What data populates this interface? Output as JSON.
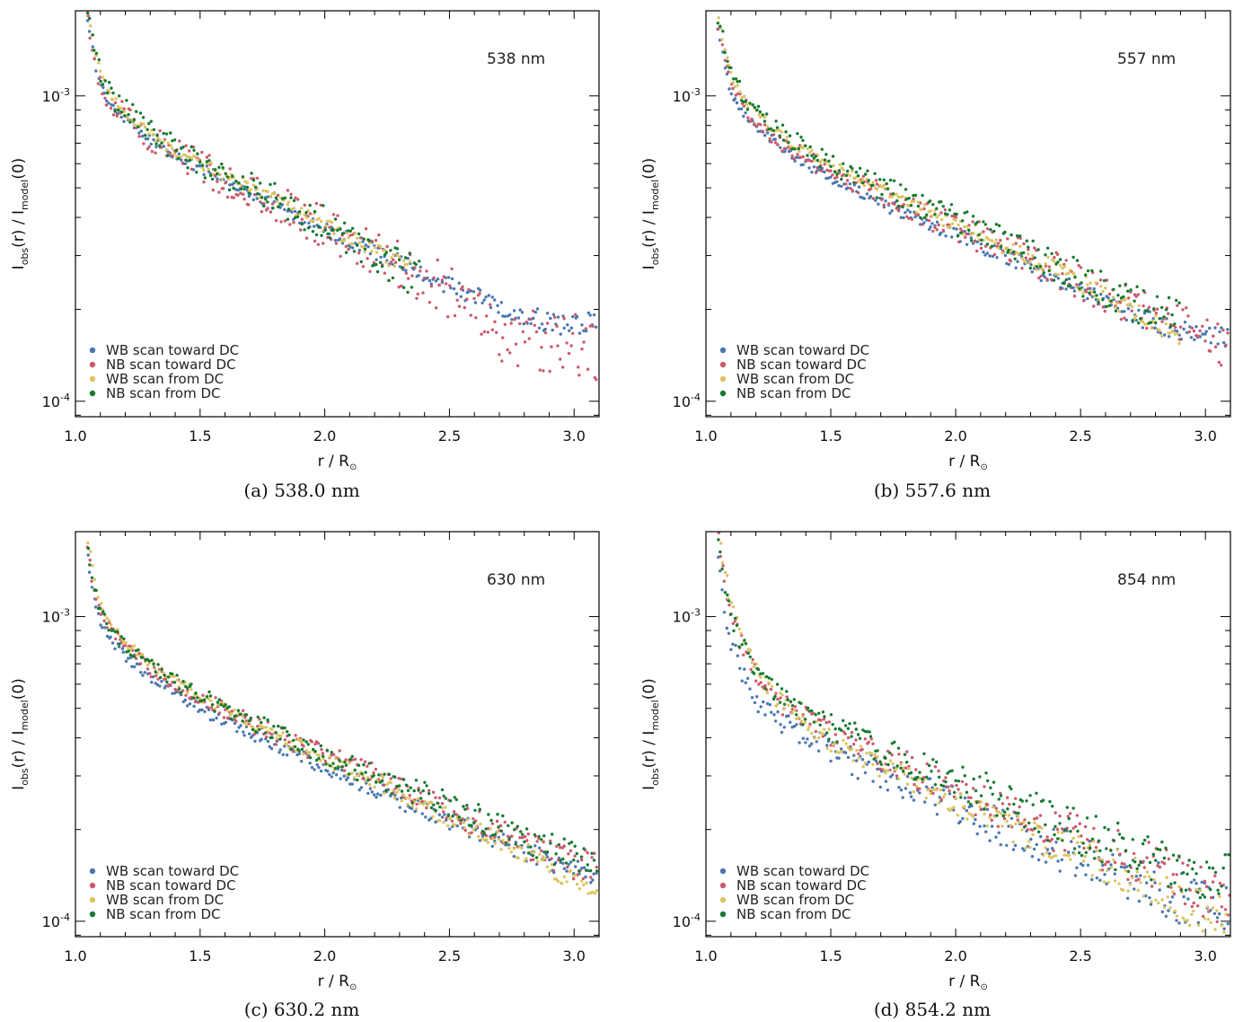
{
  "figure": {
    "legend_labels": [
      "WB scan toward DC",
      "NB scan toward DC",
      "WB scan from DC",
      "NB scan from DC"
    ],
    "series_colors": [
      "#4a78b0",
      "#cc5a6c",
      "#dcc462",
      "#177a30"
    ],
    "axis": {
      "xlabel_main": "r / R",
      "xlabel_sub": "⊙",
      "ylabel": {
        "p1": "I",
        "p1s": "obs",
        "p2": "(r) / I",
        "p2s": "model",
        "p3": "(0)"
      },
      "x_ticks": [
        "1.0",
        "1.5",
        "2.0",
        "2.5",
        "3.0"
      ],
      "y_ticks": [
        {
          "base": "10",
          "exp": "-3"
        },
        {
          "base": "10",
          "exp": "-4"
        }
      ]
    }
  },
  "chart_data": [
    {
      "type": "scatter",
      "annotation": "538 nm",
      "caption": "(a) 538.0 nm",
      "xlim": [
        1.0,
        3.1
      ],
      "ylim": [
        8.9e-05,
        0.0019
      ],
      "yscale": "log",
      "legend_position": "lower-left",
      "series": [
        {
          "name": "WB scan toward DC",
          "x": [
            1.05,
            1.07,
            1.1,
            1.15,
            1.2,
            1.3,
            1.4,
            1.5,
            1.6,
            1.8,
            2.0,
            2.2,
            2.4,
            2.6,
            2.8,
            3.0,
            3.1
          ],
          "y": [
            0.00175,
            0.0014,
            0.00108,
            0.00092,
            0.00084,
            0.00072,
            0.00064,
            0.00058,
            0.00053,
            0.00044,
            0.00037,
            0.00031,
            0.00026,
            0.00022,
            0.00019,
            0.000175,
            0.000185
          ],
          "noise": 0.02
        },
        {
          "name": "NB scan toward DC",
          "x": [
            1.05,
            1.07,
            1.1,
            1.15,
            1.2,
            1.3,
            1.4,
            1.5,
            1.6,
            1.8,
            2.0,
            2.2,
            2.4,
            2.6,
            2.65,
            2.8,
            3.0,
            3.1
          ],
          "y": [
            0.00178,
            0.00145,
            0.0011,
            0.00094,
            0.00085,
            0.00073,
            0.00065,
            0.00059,
            0.00053,
            0.00044,
            0.00037,
            0.00031,
            0.00025,
            0.00021,
            0.00017,
            0.000162,
            0.000152,
            0.000145
          ],
          "noise": 0.06
        },
        {
          "name": "WB scan from DC",
          "x": [
            1.05,
            1.07,
            1.1,
            1.15,
            1.2,
            1.3,
            1.4,
            1.5,
            1.6,
            1.8,
            2.0,
            2.2,
            2.35
          ],
          "y": [
            0.00185,
            0.0015,
            0.00118,
            0.00098,
            0.00088,
            0.00075,
            0.00066,
            0.0006,
            0.00055,
            0.00046,
            0.00038,
            0.00031,
            0.00027
          ],
          "noise": 0.02
        },
        {
          "name": "NB scan from DC",
          "x": [
            1.05,
            1.07,
            1.1,
            1.15,
            1.2,
            1.3,
            1.4,
            1.5,
            1.6,
            1.7,
            1.8,
            2.0,
            2.2,
            2.38
          ],
          "y": [
            0.00182,
            0.00155,
            0.0012,
            0.00098,
            0.0009,
            0.00077,
            0.00067,
            0.0006,
            0.00055,
            0.00052,
            0.00046,
            0.00038,
            0.00031,
            0.00025
          ],
          "noise": 0.05
        }
      ]
    },
    {
      "type": "scatter",
      "annotation": "557 nm",
      "caption": "(b) 557.6 nm",
      "xlim": [
        1.0,
        3.1
      ],
      "ylim": [
        8.9e-05,
        0.0019
      ],
      "yscale": "log",
      "legend_position": "lower-left",
      "series": [
        {
          "name": "WB scan toward DC",
          "x": [
            1.05,
            1.07,
            1.1,
            1.15,
            1.2,
            1.3,
            1.4,
            1.5,
            1.6,
            1.8,
            2.0,
            2.2,
            2.4,
            2.6,
            2.8,
            3.0,
            3.1
          ],
          "y": [
            0.0017,
            0.0013,
            0.00102,
            0.00088,
            0.0008,
            0.00068,
            0.0006,
            0.00054,
            0.00049,
            0.00041,
            0.00035,
            0.0003,
            0.00025,
            0.00021,
            0.00018,
            0.000162,
            0.00016
          ],
          "noise": 0.02
        },
        {
          "name": "NB scan toward DC",
          "x": [
            1.05,
            1.07,
            1.1,
            1.15,
            1.2,
            1.3,
            1.4,
            1.5,
            1.6,
            1.8,
            2.0,
            2.2,
            2.4,
            2.6,
            2.8,
            3.0,
            3.1
          ],
          "y": [
            0.00175,
            0.0014,
            0.00108,
            0.00093,
            0.00084,
            0.00071,
            0.00063,
            0.00057,
            0.00052,
            0.00044,
            0.00037,
            0.00032,
            0.00027,
            0.00022,
            0.00019,
            0.000165,
            0.00015
          ],
          "noise": 0.04
        },
        {
          "name": "WB scan from DC",
          "x": [
            1.05,
            1.07,
            1.1,
            1.15,
            1.2,
            1.3,
            1.4,
            1.5,
            1.6,
            1.8,
            2.0,
            2.2,
            2.4,
            2.6,
            2.8,
            2.9
          ],
          "y": [
            0.00185,
            0.0015,
            0.00118,
            0.00098,
            0.00088,
            0.00074,
            0.00066,
            0.00059,
            0.00054,
            0.00045,
            0.00038,
            0.00032,
            0.00027,
            0.00022,
            0.00018,
            0.000165
          ],
          "noise": 0.02
        },
        {
          "name": "NB scan from DC",
          "x": [
            1.05,
            1.07,
            1.1,
            1.15,
            1.2,
            1.3,
            1.4,
            1.5,
            1.6,
            1.8,
            2.0,
            2.2,
            2.4,
            2.6,
            2.8,
            2.9
          ],
          "y": [
            0.00182,
            0.0015,
            0.00118,
            0.001,
            0.0009,
            0.00076,
            0.00067,
            0.0006,
            0.00055,
            0.00046,
            0.00039,
            0.00033,
            0.00028,
            0.00023,
            0.0002,
            0.00018
          ],
          "noise": 0.04
        }
      ]
    },
    {
      "type": "scatter",
      "annotation": "630 nm",
      "caption": "(c) 630.2 nm",
      "xlim": [
        1.0,
        3.1
      ],
      "ylim": [
        8.9e-05,
        0.0019
      ],
      "yscale": "log",
      "legend_position": "lower-left",
      "series": [
        {
          "name": "WB scan toward DC",
          "x": [
            1.05,
            1.07,
            1.1,
            1.15,
            1.2,
            1.3,
            1.4,
            1.5,
            1.6,
            1.8,
            2.0,
            2.2,
            2.4,
            2.6,
            2.8,
            3.0,
            3.1
          ],
          "y": [
            0.0016,
            0.0012,
            0.00095,
            0.00082,
            0.00074,
            0.00063,
            0.00056,
            0.0005,
            0.00045,
            0.00038,
            0.00032,
            0.00027,
            0.00023,
            0.0002,
            0.00017,
            0.000148,
            0.00014
          ],
          "noise": 0.02
        },
        {
          "name": "NB scan toward DC",
          "x": [
            1.05,
            1.07,
            1.1,
            1.15,
            1.2,
            1.3,
            1.4,
            1.5,
            1.6,
            1.8,
            2.0,
            2.2,
            2.4,
            2.6,
            2.8,
            3.0,
            3.1
          ],
          "y": [
            0.0017,
            0.0013,
            0.00102,
            0.00088,
            0.00079,
            0.00067,
            0.0006,
            0.00054,
            0.00049,
            0.00041,
            0.00035,
            0.0003,
            0.00025,
            0.00021,
            0.00018,
            0.000155,
            0.00015
          ],
          "noise": 0.03
        },
        {
          "name": "WB scan from DC",
          "x": [
            1.05,
            1.07,
            1.1,
            1.15,
            1.2,
            1.3,
            1.4,
            1.5,
            1.6,
            1.8,
            2.0,
            2.2,
            2.4,
            2.6,
            2.8,
            3.0,
            3.1
          ],
          "y": [
            0.00175,
            0.0014,
            0.0011,
            0.00092,
            0.00083,
            0.0007,
            0.00062,
            0.00055,
            0.0005,
            0.00041,
            0.00034,
            0.00029,
            0.00024,
            0.0002,
            0.00017,
            0.000135,
            0.000128
          ],
          "noise": 0.02
        },
        {
          "name": "NB scan from DC",
          "x": [
            1.05,
            1.07,
            1.1,
            1.15,
            1.2,
            1.3,
            1.4,
            1.5,
            1.6,
            1.8,
            2.0,
            2.2,
            2.4,
            2.6,
            2.8,
            3.0,
            3.1
          ],
          "y": [
            0.00168,
            0.0013,
            0.00104,
            0.0009,
            0.0008,
            0.00069,
            0.00061,
            0.00055,
            0.0005,
            0.00042,
            0.00035,
            0.0003,
            0.00026,
            0.00022,
            0.00019,
            0.00016,
            0.000155
          ],
          "noise": 0.03
        }
      ]
    },
    {
      "type": "scatter",
      "annotation": "854 nm",
      "caption": "(d) 854.2 nm",
      "xlim": [
        1.0,
        3.1
      ],
      "ylim": [
        8.9e-05,
        0.0019
      ],
      "yscale": "log",
      "legend_position": "lower-left",
      "series": [
        {
          "name": "WB scan toward DC",
          "x": [
            1.05,
            1.07,
            1.1,
            1.15,
            1.2,
            1.3,
            1.4,
            1.5,
            1.6,
            1.8,
            2.0,
            2.2,
            2.4,
            2.6,
            2.8,
            3.0,
            3.1
          ],
          "y": [
            0.0015,
            0.0011,
            0.00082,
            0.00063,
            0.00054,
            0.00045,
            0.0004,
            0.00036,
            0.00033,
            0.00028,
            0.00024,
            0.0002,
            0.000175,
            0.00015,
            0.00013,
            0.00011,
            0.000105
          ],
          "noise": 0.05
        },
        {
          "name": "NB scan toward DC",
          "x": [
            1.05,
            1.07,
            1.1,
            1.15,
            1.2,
            1.3,
            1.4,
            1.5,
            1.6,
            1.8,
            2.0,
            2.2,
            2.4,
            2.6,
            2.8,
            3.0,
            3.1
          ],
          "y": [
            0.0018,
            0.0014,
            0.00105,
            0.00078,
            0.00064,
            0.00052,
            0.00046,
            0.00041,
            0.00038,
            0.00032,
            0.00027,
            0.00023,
            0.0002,
            0.000172,
            0.00015,
            0.000125,
            0.000118
          ],
          "noise": 0.05
        },
        {
          "name": "WB scan from DC",
          "x": [
            1.05,
            1.07,
            1.1,
            1.15,
            1.2,
            1.3,
            1.4,
            1.5,
            1.6,
            1.8,
            2.0,
            2.2,
            2.4,
            2.6,
            2.8,
            3.0,
            3.1
          ],
          "y": [
            0.00188,
            0.0015,
            0.00112,
            0.00082,
            0.00066,
            0.00052,
            0.00044,
            0.00039,
            0.00035,
            0.0003,
            0.00025,
            0.00021,
            0.00018,
            0.000155,
            0.00013,
            0.000105,
            0.0001
          ],
          "noise": 0.04
        },
        {
          "name": "NB scan from DC",
          "x": [
            1.05,
            1.07,
            1.1,
            1.15,
            1.2,
            1.3,
            1.4,
            1.5,
            1.6,
            1.8,
            2.0,
            2.2,
            2.4,
            2.6,
            2.8,
            3.0,
            3.1
          ],
          "y": [
            0.0017,
            0.0013,
            0.001,
            0.00078,
            0.00066,
            0.00054,
            0.00048,
            0.00043,
            0.0004,
            0.00034,
            0.00029,
            0.00025,
            0.00021,
            0.00018,
            0.00016,
            0.00014,
            0.000135
          ],
          "noise": 0.05
        }
      ]
    }
  ]
}
